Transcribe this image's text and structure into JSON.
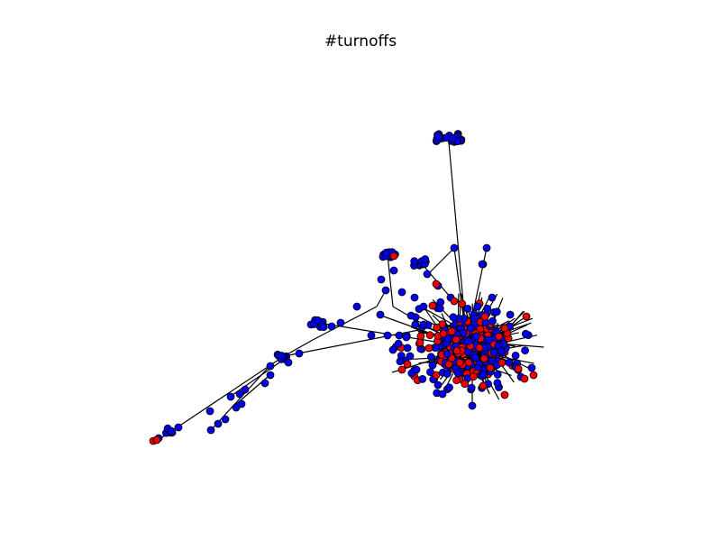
{
  "figure": {
    "title": "#turnoffs"
  },
  "colors": {
    "node_a": "#0000ee",
    "node_b": "#ee0000",
    "edge": "#000000",
    "background": "#ffffff"
  }
}
